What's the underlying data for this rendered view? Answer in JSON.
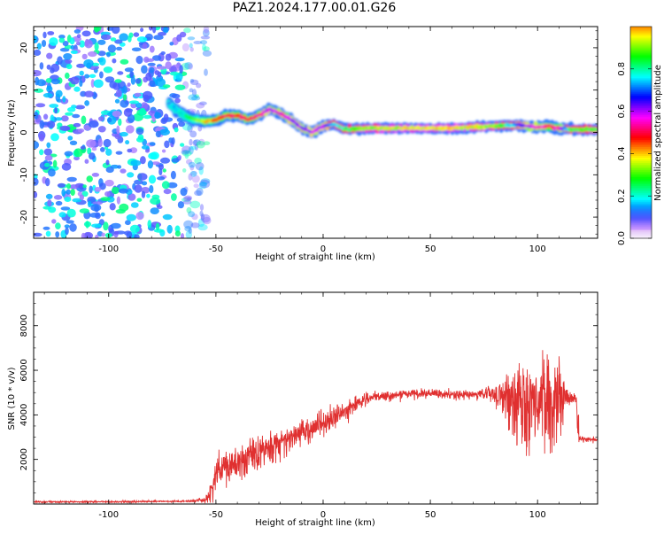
{
  "figure": {
    "title": "PAZ1.2024.177.00.01.G26"
  },
  "chart_data": [
    {
      "type": "heatmap",
      "xlabel": "Height of straight line (km)",
      "ylabel": "Frequency (Hz)",
      "xlim": [
        -135,
        128
      ],
      "ylim": [
        -25,
        25
      ],
      "xticks": [
        -100,
        -50,
        0,
        50,
        100
      ],
      "yticks": [
        -20,
        -10,
        0,
        10,
        20
      ],
      "colormap": "gist_rainbow_r (white at 0, violet to magenta)",
      "colorbar": {
        "label": "Normalized spectral amplitude",
        "range": [
          0,
          1
        ],
        "ticks": [
          "0.0",
          "0.2",
          "0.4",
          "0.6",
          "0.8"
        ]
      },
      "noise_region_x": [
        -135,
        -60
      ],
      "ridge": {
        "x": [
          -72,
          -65,
          -60,
          -55,
          -50,
          -45,
          -40,
          -35,
          -30,
          -25,
          -20,
          -15,
          -10,
          -5,
          0,
          5,
          10,
          20,
          40,
          60,
          80,
          90,
          95,
          100,
          105,
          110,
          115,
          120,
          128
        ],
        "frequency_hz": [
          7,
          4,
          3,
          2.5,
          3,
          4,
          4,
          3,
          4,
          5.5,
          4.5,
          3,
          1,
          0,
          1.5,
          2,
          0.8,
          1,
          1,
          1,
          1.5,
          1.8,
          1.5,
          1.2,
          1.5,
          1,
          0.7,
          0.7,
          0.7
        ],
        "amplitude": [
          0.15,
          0.2,
          0.3,
          0.4,
          0.45,
          0.5,
          0.5,
          0.5,
          0.55,
          0.6,
          0.55,
          0.6,
          0.6,
          0.6,
          0.6,
          0.75,
          0.8,
          0.9,
          0.95,
          0.95,
          0.9,
          0.7,
          0.6,
          0.55,
          0.5,
          0.55,
          0.8,
          0.85,
          0.85
        ]
      }
    },
    {
      "type": "line",
      "xlabel": "Height of straight line (km)",
      "ylabel": "SNR (10 * v/v)",
      "xlim": [
        -135,
        128
      ],
      "ylim": [
        0,
        9500
      ],
      "xticks": [
        -100,
        -50,
        0,
        50,
        100
      ],
      "yticks": [
        2000,
        4000,
        6000,
        8000
      ],
      "color": "#e03030",
      "series": [
        {
          "x": [
            -135,
            -100,
            -65,
            -60,
            -55,
            -52,
            -50,
            -45,
            -40,
            -35,
            -30,
            -25,
            -20,
            -15,
            -10,
            -5,
            0,
            5,
            10,
            15,
            20,
            25,
            30,
            40,
            50,
            60,
            70,
            75,
            80,
            85,
            90,
            95,
            100,
            105,
            110,
            115,
            118,
            119,
            122,
            128
          ],
          "y": [
            100,
            100,
            120,
            150,
            200,
            500,
            1400,
            1700,
            1800,
            2200,
            2500,
            2700,
            2800,
            3000,
            3200,
            3500,
            3600,
            3900,
            4100,
            4500,
            4700,
            4800,
            4850,
            4950,
            4950,
            4900,
            4900,
            4950,
            5000,
            4900,
            4800,
            4700,
            4600,
            4700,
            4750,
            4750,
            4750,
            2950,
            2900,
            2900
          ],
          "noise_amplitude": [
            40,
            40,
            40,
            60,
            150,
            400,
            900,
            900,
            1000,
            1000,
            900,
            800,
            800,
            700,
            700,
            600,
            600,
            500,
            450,
            300,
            250,
            200,
            200,
            200,
            200,
            200,
            200,
            250,
            500,
            1100,
            1800,
            2200,
            2400,
            2200,
            1800,
            300,
            200,
            150,
            100,
            100
          ]
        }
      ]
    }
  ]
}
